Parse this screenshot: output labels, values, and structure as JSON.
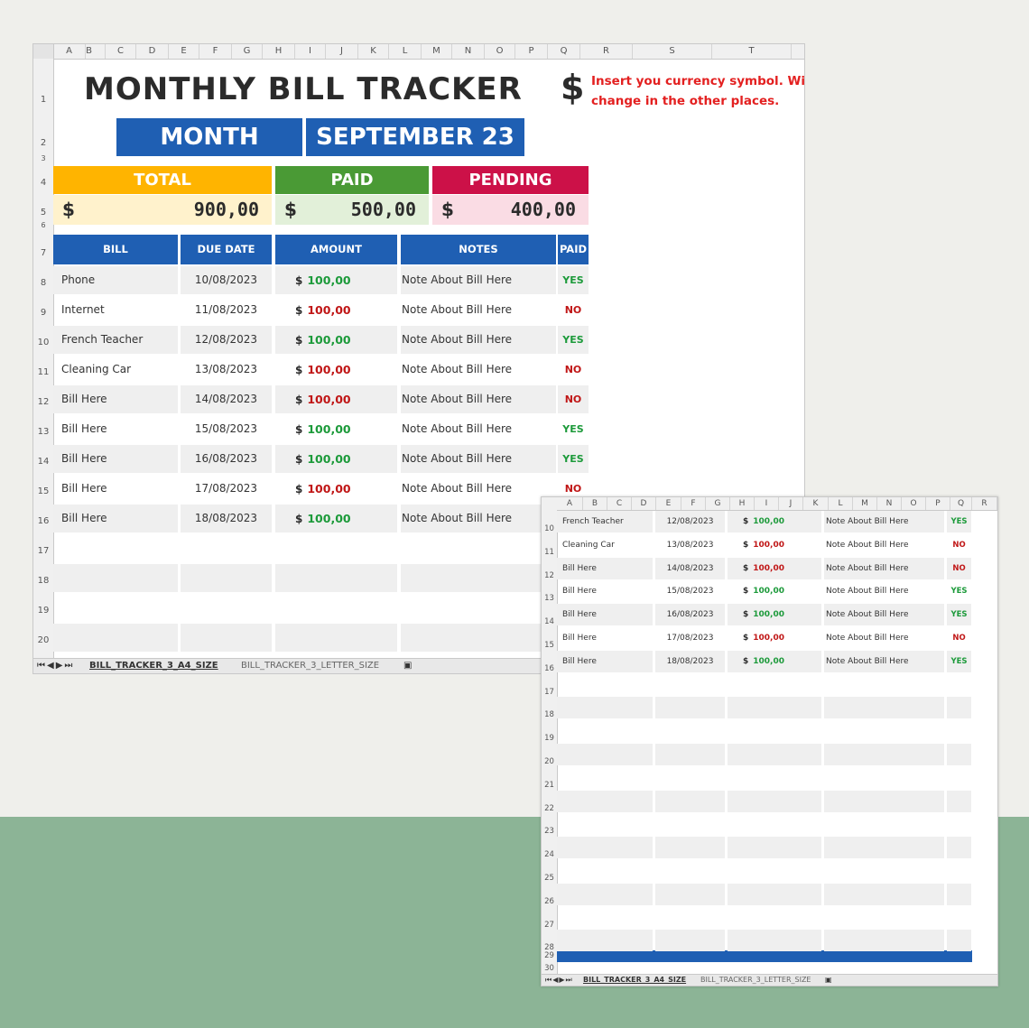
{
  "columns": [
    "A",
    "B",
    "C",
    "D",
    "E",
    "F",
    "G",
    "H",
    "I",
    "J",
    "K",
    "L",
    "M",
    "N",
    "O",
    "P",
    "Q",
    "R",
    "S",
    "T"
  ],
  "columns2": [
    "A",
    "B",
    "C",
    "D",
    "E",
    "F",
    "G",
    "H",
    "I",
    "J",
    "K",
    "L",
    "M",
    "N",
    "O",
    "P",
    "Q",
    "R"
  ],
  "rows_main": [
    "1",
    "2",
    "3",
    "4",
    "5",
    "6",
    "7",
    "8",
    "9",
    "10",
    "11",
    "12",
    "13",
    "14",
    "15",
    "16",
    "17",
    "18",
    "19",
    "20"
  ],
  "rows_second": [
    "10",
    "11",
    "12",
    "13",
    "14",
    "15",
    "16",
    "17",
    "18",
    "19",
    "20",
    "21",
    "22",
    "23",
    "24",
    "25",
    "26",
    "27",
    "28",
    "29",
    "30"
  ],
  "title": "MONTHLY BILL TRACKER",
  "currency_symbol": "$",
  "currency_note": "Insert you currency symbol. Will change in the other places.",
  "month_label": "MONTH",
  "month_value": "SEPTEMBER 23",
  "summary": {
    "total_label": "TOTAL",
    "total_value": "900,00",
    "paid_label": "PAID",
    "paid_value": "500,00",
    "pending_label": "PENDING",
    "pending_value": "400,00",
    "colors": {
      "total": "#ffb400",
      "paid": "#4a9a35",
      "pending": "#cc1148"
    }
  },
  "table_headers": {
    "bill": "BILL",
    "due_date": "DUE DATE",
    "amount": "AMOUNT",
    "notes": "NOTES",
    "paid": "PAID"
  },
  "bills": [
    {
      "bill": "Phone",
      "due": "10/08/2023",
      "amount": "100,00",
      "note": "Note About Bill Here",
      "paid": "YES"
    },
    {
      "bill": "Internet",
      "due": "11/08/2023",
      "amount": "100,00",
      "note": "Note About Bill Here",
      "paid": "NO"
    },
    {
      "bill": "French Teacher",
      "due": "12/08/2023",
      "amount": "100,00",
      "note": "Note About Bill Here",
      "paid": "YES"
    },
    {
      "bill": "Cleaning Car",
      "due": "13/08/2023",
      "amount": "100,00",
      "note": "Note About Bill Here",
      "paid": "NO"
    },
    {
      "bill": "Bill Here",
      "due": "14/08/2023",
      "amount": "100,00",
      "note": "Note About Bill Here",
      "paid": "NO"
    },
    {
      "bill": "Bill Here",
      "due": "15/08/2023",
      "amount": "100,00",
      "note": "Note About Bill Here",
      "paid": "YES"
    },
    {
      "bill": "Bill Here",
      "due": "16/08/2023",
      "amount": "100,00",
      "note": "Note About Bill Here",
      "paid": "YES"
    },
    {
      "bill": "Bill Here",
      "due": "17/08/2023",
      "amount": "100,00",
      "note": "Note About Bill Here",
      "paid": "NO"
    },
    {
      "bill": "Bill Here",
      "due": "18/08/2023",
      "amount": "100,00",
      "note": "Note About Bill Here",
      "paid": "YES"
    }
  ],
  "sheet_tabs": [
    "BILL_TRACKER_3_A4_SIZE",
    "BILL_TRACKER_3_LETTER_SIZE"
  ],
  "tab_nav_icons": [
    "first-sheet-icon",
    "prev-sheet-icon",
    "next-sheet-icon",
    "last-sheet-icon"
  ]
}
